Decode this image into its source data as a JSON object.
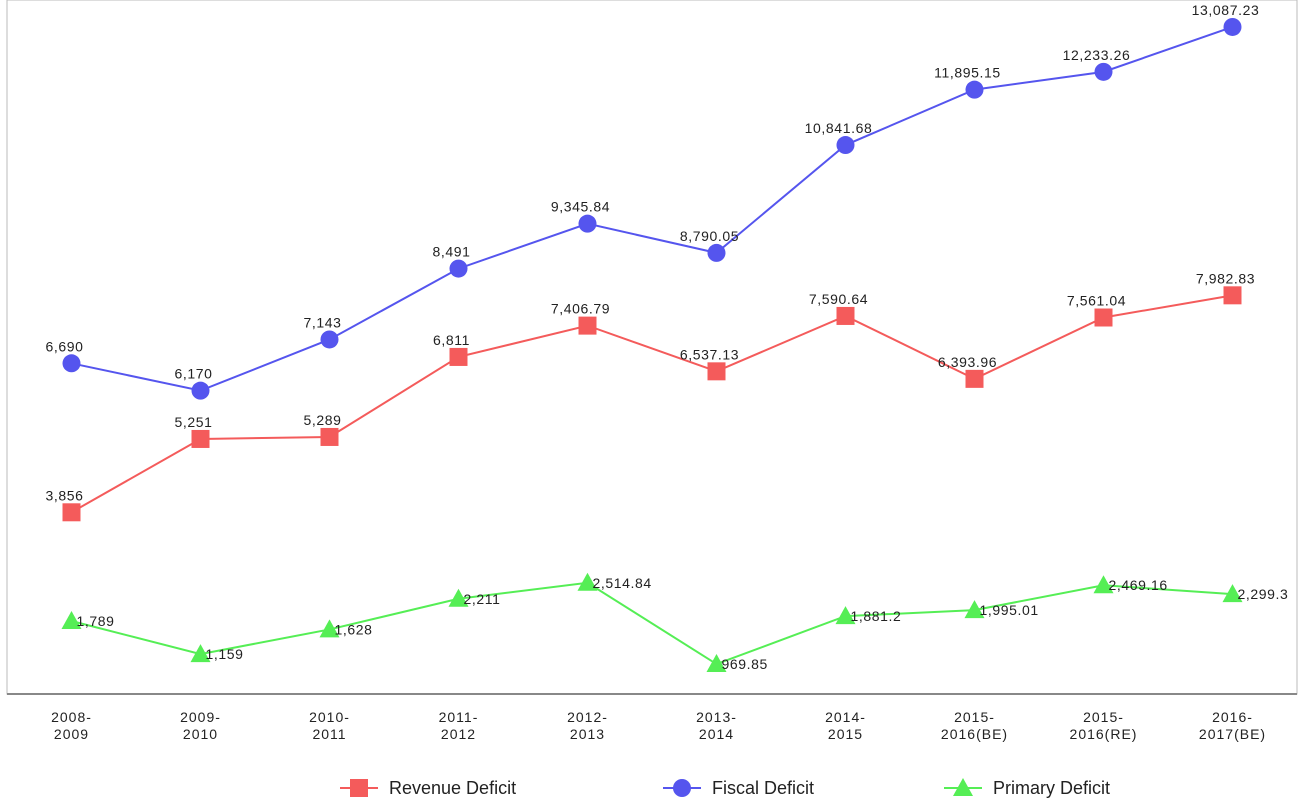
{
  "chart_data": {
    "type": "line",
    "title": "",
    "xlabel": "",
    "ylabel": "",
    "categories": [
      [
        "2008-",
        "2009"
      ],
      [
        "2009-",
        "2010"
      ],
      [
        "2010-",
        "2011"
      ],
      [
        "2011-",
        "2012"
      ],
      [
        "2012-",
        "2013"
      ],
      [
        "2013-",
        "2014"
      ],
      [
        "2014-",
        "2015"
      ],
      [
        "2015-",
        "2016(BE)"
      ],
      [
        "2015-",
        "2016(RE)"
      ],
      [
        "2016-",
        "2017(BE)"
      ]
    ],
    "ylim": [
      400,
      13600
    ],
    "grid": false,
    "legend_position": "bottom",
    "series": [
      {
        "name": "Revenue Deficit",
        "color": "#f45b5b",
        "marker": "square",
        "values": [
          3856,
          5251,
          5289,
          6811,
          7406.79,
          6537.13,
          7590.64,
          6393.96,
          7561.04,
          7982.83
        ],
        "labels": [
          "3,856",
          "5,251",
          "5,289",
          "6,811",
          "7,406.79",
          "6,537.13",
          "7,590.64",
          "6,393.96",
          "7,561.04",
          "7,982.83"
        ]
      },
      {
        "name": "Fiscal Deficit",
        "color": "#5555ee",
        "marker": "circle",
        "values": [
          6690,
          6170,
          7143,
          8491,
          9345.84,
          8790.05,
          10841.68,
          11895.15,
          12233.26,
          13087.23
        ],
        "labels": [
          "6,690",
          "6,170",
          "7,143",
          "8,491",
          "9,345.84",
          "8,790.05",
          "10,841.68",
          "11,895.15",
          "12,233.26",
          "13,087.23"
        ]
      },
      {
        "name": "Primary Deficit",
        "color": "#55ee55",
        "marker": "triangle",
        "values": [
          1789,
          1159,
          1628,
          2211,
          2514.84,
          969.85,
          1881.2,
          1995.01,
          2469.16,
          2299.3
        ],
        "labels": [
          "1,789",
          "1,159",
          "1,628",
          "2,211",
          "2,514.84",
          "969.85",
          "1,881.2",
          "1,995.01",
          "2,469.16",
          "2,299.3"
        ]
      }
    ]
  }
}
